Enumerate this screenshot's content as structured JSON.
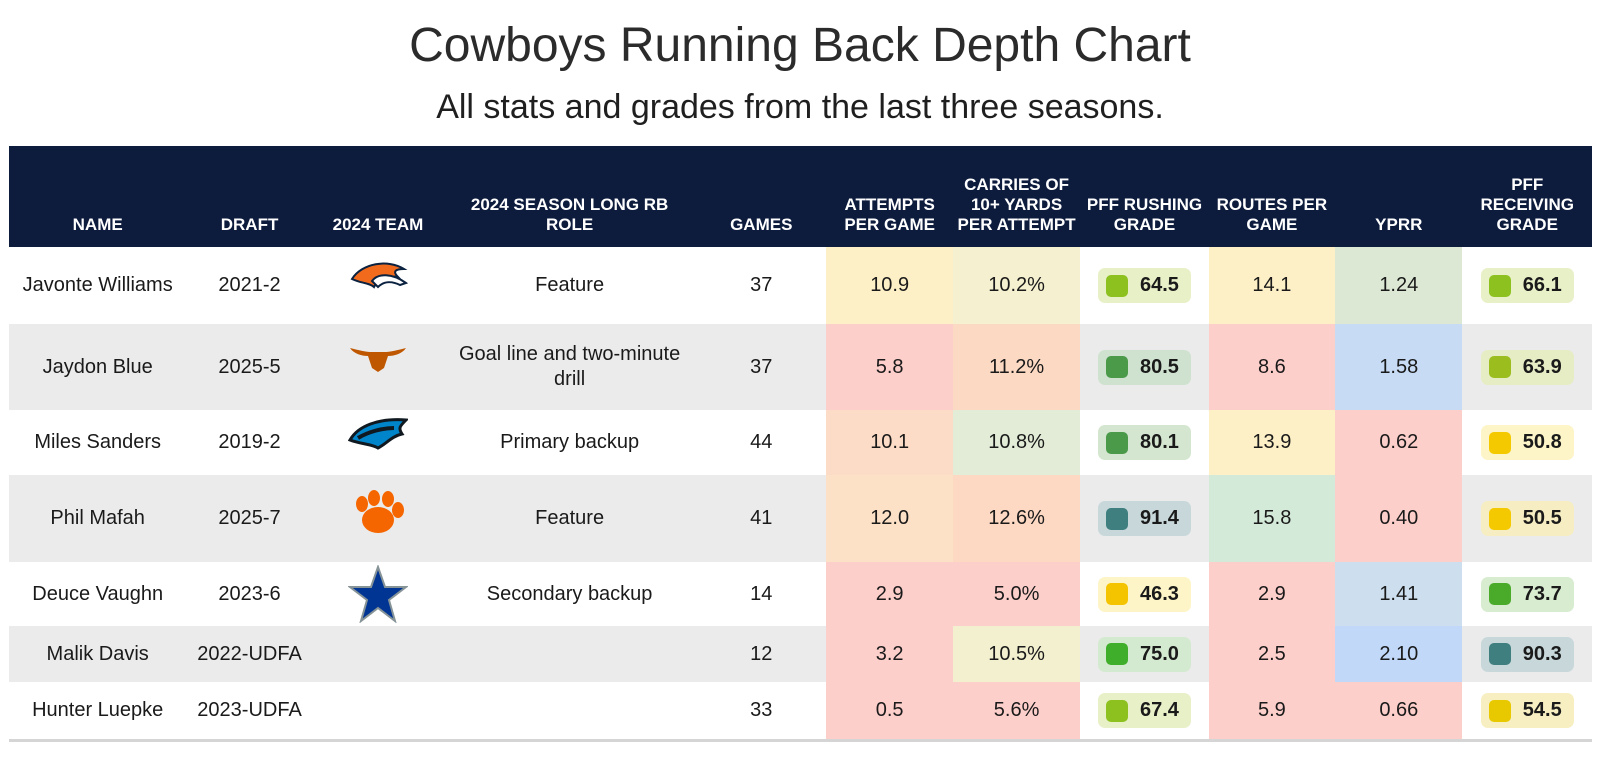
{
  "title": "Cowboys Running Back Depth Chart",
  "subtitle": "All stats and grades from the last three seasons.",
  "chart_data": {
    "type": "table",
    "columns": [
      "NAME",
      "DRAFT",
      "2024 TEAM",
      "2024 SEASON LONG RB ROLE",
      "GAMES",
      "ATTEMPTS PER GAME",
      "CARRIES OF 10+ YARDS PER ATTEMPT",
      "PFF RUSHING GRADE",
      "ROUTES PER GAME",
      "YPRR",
      "PFF RECEIVING GRADE"
    ],
    "rows": [
      {
        "name": "Javonte Williams",
        "draft": "2021-2",
        "team_logo": "broncos-logo",
        "role": "Feature",
        "games": "37",
        "att": "10.9",
        "carries10": "10.2%",
        "rush_grade": "64.5",
        "routes": "14.1",
        "yprr": "1.24",
        "rec_grade": "66.1",
        "colors": {
          "att": "#fdefc6",
          "carries10": "#f5f0cf",
          "rush_bg": "#e8f0c8",
          "rush_dot": "#8dc11f",
          "routes": "#fdefc6",
          "yprr": "#dce8d4",
          "rec_bg": "#e8f0c8",
          "rec_dot": "#8dc11f"
        }
      },
      {
        "name": "Jaydon Blue",
        "draft": "2025-5",
        "team_logo": "longhorns-logo",
        "role": "Goal line and two-minute drill",
        "games": "37",
        "att": "5.8",
        "carries10": "11.2%",
        "rush_grade": "80.5",
        "routes": "8.6",
        "yprr": "1.58",
        "rec_grade": "63.9",
        "colors": {
          "att": "#fdcfca",
          "carries10": "#fcd9c3",
          "rush_bg": "#cfe2cf",
          "rush_dot": "#4a9a4a",
          "routes": "#fdcfca",
          "yprr": "#c7dbf4",
          "rec_bg": "#e6ecc4",
          "rec_dot": "#9bbd1e"
        }
      },
      {
        "name": "Miles Sanders",
        "draft": "2019-2",
        "team_logo": "panthers-logo",
        "role": "Primary backup",
        "games": "44",
        "att": "10.1",
        "carries10": "10.8%",
        "rush_grade": "80.1",
        "routes": "13.9",
        "yprr": "0.62",
        "rec_grade": "50.8",
        "colors": {
          "att": "#fcdcc7",
          "carries10": "#e2ecd7",
          "rush_bg": "#d4e6cf",
          "rush_dot": "#4a9a4a",
          "routes": "#fdefc6",
          "yprr": "#fdcfca",
          "rec_bg": "#fdf5c8",
          "rec_dot": "#f5c900"
        }
      },
      {
        "name": "Phil Mafah",
        "draft": "2025-7",
        "team_logo": "clemson-logo",
        "role": "Feature",
        "games": "41",
        "att": "12.0",
        "carries10": "12.6%",
        "rush_grade": "91.4",
        "routes": "15.8",
        "yprr": "0.40",
        "rec_grade": "50.5",
        "colors": {
          "att": "#fde1c6",
          "carries10": "#fdd9c3",
          "rush_bg": "#c8d8da",
          "rush_dot": "#3f7f7f",
          "routes": "#d4ead9",
          "yprr": "#fdcfca",
          "rec_bg": "#f7edc2",
          "rec_dot": "#f5c900"
        }
      },
      {
        "name": "Deuce Vaughn",
        "draft": "2023-6",
        "team_logo": "cowboys-star-logo",
        "role": "Secondary backup",
        "games": "14",
        "att": "2.9",
        "carries10": "5.0%",
        "rush_grade": "46.3",
        "routes": "2.9",
        "yprr": "1.41",
        "rec_grade": "73.7",
        "colors": {
          "att": "#fdcfca",
          "carries10": "#fdcfca",
          "rush_bg": "#fdf5c8",
          "rush_dot": "#f5c400",
          "routes": "#fdcfca",
          "yprr": "#cddfee",
          "rec_bg": "#d8ecd0",
          "rec_dot": "#4aaa2a"
        }
      },
      {
        "name": "Malik Davis",
        "draft": "2022-UDFA",
        "team_logo": "",
        "role": "",
        "games": "12",
        "att": "3.2",
        "carries10": "10.5%",
        "rush_grade": "75.0",
        "routes": "2.5",
        "yprr": "2.10",
        "rec_grade": "90.3",
        "colors": {
          "att": "#fdcfca",
          "carries10": "#f2f0cf",
          "rush_bg": "#d4ead0",
          "rush_dot": "#3fae2a",
          "routes": "#fdcfca",
          "yprr": "#c2d8f8",
          "rec_bg": "#c8d8da",
          "rec_dot": "#3f7f7f"
        }
      },
      {
        "name": "Hunter Luepke",
        "draft": "2023-UDFA",
        "team_logo": "",
        "role": "",
        "games": "33",
        "att": "0.5",
        "carries10": "5.6%",
        "rush_grade": "67.4",
        "routes": "5.9",
        "yprr": "0.66",
        "rec_grade": "54.5",
        "colors": {
          "att": "#fdcfca",
          "carries10": "#fdcfca",
          "rush_bg": "#e8f0c8",
          "rush_dot": "#8dc11f",
          "routes": "#fdcfca",
          "yprr": "#fdcfca",
          "rec_bg": "#f7efc2",
          "rec_dot": "#e8c900"
        }
      }
    ]
  }
}
